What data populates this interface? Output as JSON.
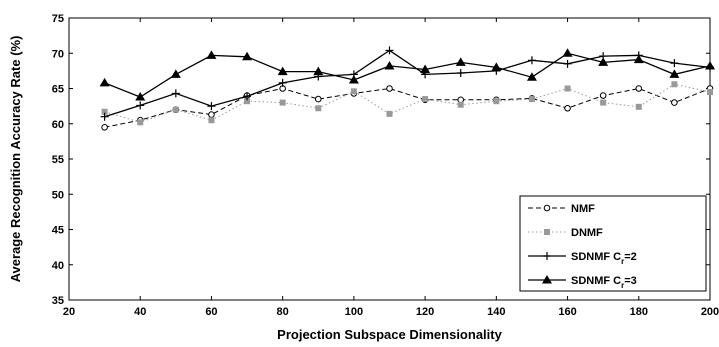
{
  "chart_data": {
    "type": "line",
    "title": "",
    "xlabel": "Projection Subspace Dimensionality",
    "ylabel": "Average Recognition Accuracy Rate (%)",
    "xlim": [
      20,
      200
    ],
    "ylim": [
      35,
      75
    ],
    "xticks": [
      "20",
      "40",
      "60",
      "80",
      "100",
      "120",
      "140",
      "160",
      "180",
      "200"
    ],
    "yticks": [
      "35",
      "40",
      "45",
      "50",
      "55",
      "60",
      "65",
      "70",
      "75"
    ],
    "grid": false,
    "legend_position": "bottom-right",
    "x": [
      30,
      40,
      50,
      60,
      70,
      80,
      90,
      100,
      110,
      120,
      130,
      140,
      150,
      160,
      170,
      180,
      190,
      200
    ],
    "series": [
      {
        "name": "NMF",
        "legend_main": "NMF",
        "legend_sub": "",
        "legend_tail": "",
        "style": "dashed",
        "marker": "open-circle",
        "color": "#000000",
        "values": [
          59.5,
          60.5,
          62.0,
          61.3,
          64.0,
          65.0,
          63.5,
          64.3,
          65.0,
          63.4,
          63.4,
          63.4,
          63.6,
          62.2,
          64.0,
          65.0,
          63.0,
          65.0
        ]
      },
      {
        "name": "DNMF",
        "legend_main": "DNMF",
        "legend_sub": "",
        "legend_tail": "",
        "style": "dotted",
        "marker": "filled-square",
        "color": "#999999",
        "values": [
          61.7,
          60.2,
          62.0,
          60.5,
          63.2,
          63.0,
          62.2,
          64.6,
          61.4,
          63.5,
          62.7,
          63.2,
          63.5,
          65.0,
          63.0,
          62.4,
          65.6,
          64.5
        ]
      },
      {
        "name": "SDNMF C_r=2",
        "legend_main": "SDNMF C",
        "legend_sub": "r",
        "legend_tail": "=2",
        "style": "solid",
        "marker": "plus",
        "color": "#000000",
        "values": [
          61.0,
          62.6,
          64.3,
          62.5,
          63.9,
          65.8,
          66.7,
          67.0,
          70.4,
          67.0,
          67.2,
          67.5,
          69.0,
          68.5,
          69.6,
          69.7,
          68.6,
          68.0
        ]
      },
      {
        "name": "SDNMF C_r=3",
        "legend_main": "SDNMF C",
        "legend_sub": "r",
        "legend_tail": "=3",
        "style": "solid",
        "marker": "filled-triangle",
        "color": "#000000",
        "values": [
          65.8,
          63.8,
          67.0,
          69.7,
          69.5,
          67.4,
          67.4,
          66.2,
          68.2,
          67.7,
          68.7,
          68.0,
          66.6,
          70.0,
          68.7,
          69.1,
          67.0,
          68.2
        ]
      }
    ]
  }
}
